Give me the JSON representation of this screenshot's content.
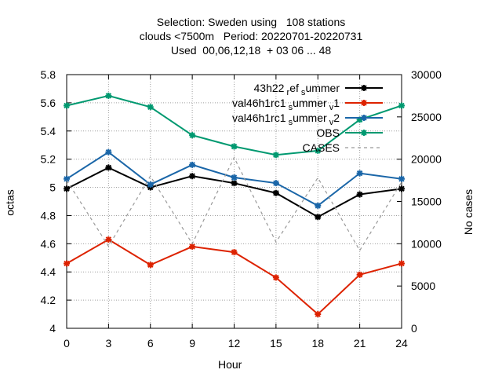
{
  "title_lines": [
    "Selection: Sweden using   108 stations",
    "clouds <7500m   Period: 20220701-20220731",
    "Used  00,06,12,18  + 03 06 ... 48"
  ],
  "chart_data": {
    "type": "line",
    "xlabel": "Hour",
    "ylabel": "octas",
    "y2label": "No cases",
    "x": [
      0,
      3,
      6,
      9,
      12,
      15,
      18,
      21,
      24
    ],
    "xlim": [
      0,
      24
    ],
    "ylim": [
      4,
      5.8
    ],
    "y2lim": [
      0,
      30000
    ],
    "x_ticks": [
      "0",
      "3",
      "6",
      "9",
      "12",
      "15",
      "18",
      "21",
      "24"
    ],
    "y_ticks": [
      "4",
      "4.2",
      "4.4",
      "4.6",
      "4.8",
      "5",
      "5.2",
      "5.4",
      "5.6",
      "5.8"
    ],
    "y2_ticks": [
      "0",
      "5000",
      "10000",
      "15000",
      "20000",
      "25000",
      "30000"
    ],
    "grid": true,
    "legend_position": "top-right",
    "series": [
      {
        "name": "43h22_ref_summer",
        "legend_main": "43h22",
        "legend_parts": [
          [
            "r",
            "sub"
          ],
          [
            "ef",
            "base"
          ],
          [
            "s",
            "sub"
          ],
          [
            "ummer",
            "base"
          ]
        ],
        "axis": "y",
        "color": "#000000",
        "marker": "star",
        "values": [
          4.99,
          5.14,
          5.0,
          5.08,
          5.03,
          4.96,
          4.79,
          4.95,
          4.99
        ]
      },
      {
        "name": "val46h1rc1_summer_v1",
        "legend_main": "val46h1rc1",
        "legend_parts": [
          [
            "s",
            "sub"
          ],
          [
            "ummer",
            "base"
          ],
          [
            "v",
            "sub"
          ],
          [
            "1",
            "base"
          ]
        ],
        "axis": "y",
        "color": "#dd2200",
        "marker": "star",
        "values": [
          4.46,
          4.63,
          4.45,
          4.58,
          4.54,
          4.36,
          4.1,
          4.38,
          4.46
        ]
      },
      {
        "name": "val46h1rc1_summer_v2",
        "legend_main": "val46h1rc1",
        "legend_parts": [
          [
            "s",
            "sub"
          ],
          [
            "ummer",
            "base"
          ],
          [
            "v",
            "sub"
          ],
          [
            "2",
            "base"
          ]
        ],
        "axis": "y",
        "color": "#1a66a8",
        "marker": "star",
        "values": [
          5.06,
          5.25,
          5.02,
          5.16,
          5.07,
          5.03,
          4.87,
          5.1,
          5.06
        ]
      },
      {
        "name": "OBS",
        "legend_main": "OBS",
        "legend_parts": [],
        "axis": "y",
        "color": "#009970",
        "marker": "star",
        "values": [
          5.58,
          5.65,
          5.57,
          5.37,
          5.29,
          5.23,
          5.26,
          5.48,
          5.58
        ]
      },
      {
        "name": "CASES",
        "legend_main": "CASES",
        "legend_parts": [],
        "axis": "y2",
        "color": "#999999",
        "marker": "none",
        "dashed": true,
        "values": [
          17500,
          9700,
          18000,
          10000,
          20200,
          10200,
          17800,
          9200,
          17300
        ]
      }
    ]
  }
}
